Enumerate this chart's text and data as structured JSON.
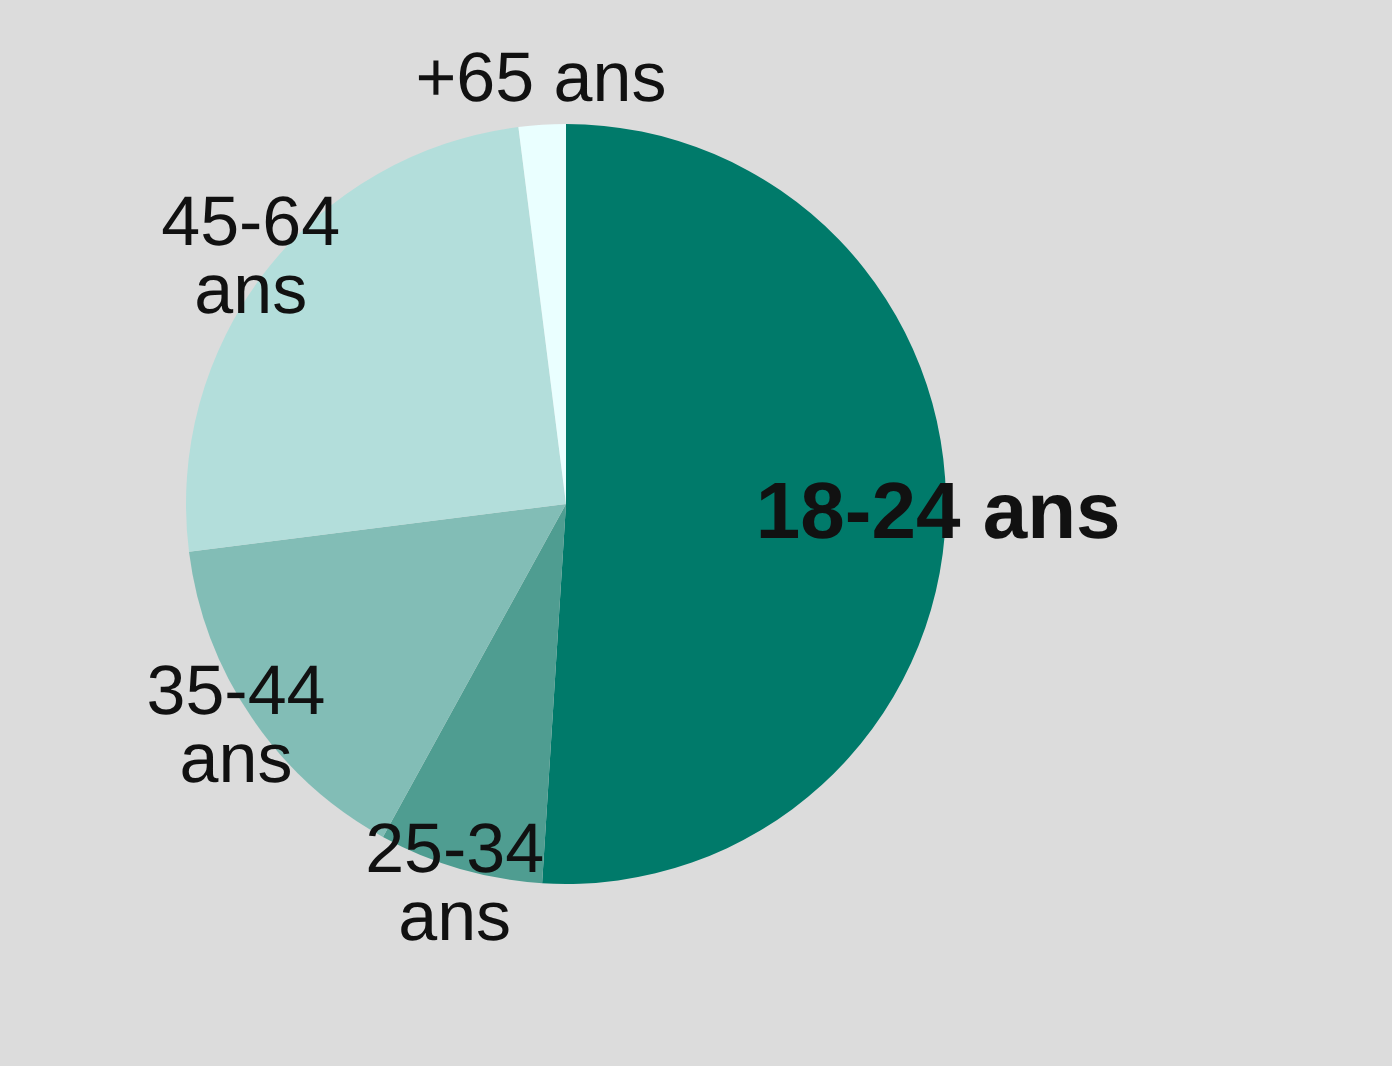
{
  "chart_data": {
    "type": "pie",
    "categories": [
      "18-24 ans",
      "25-34 ans",
      "35-44 ans",
      "45-64 ans",
      "+65 ans"
    ],
    "values": [
      51,
      7,
      15,
      25,
      2
    ],
    "colors": [
      "#007a6a",
      "#4f9d91",
      "#82bdb6",
      "#b3dedb",
      "#eaffff"
    ]
  }
}
